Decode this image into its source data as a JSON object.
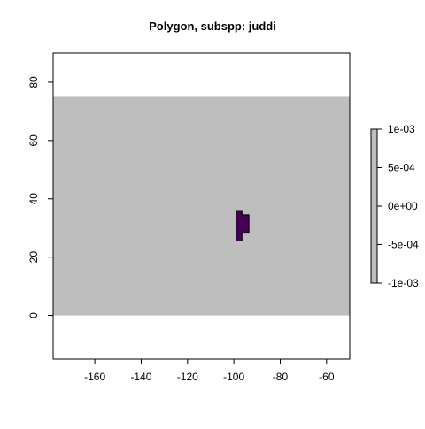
{
  "chart_data": {
    "type": "heatmap",
    "title": "Polygon, subspp: juddi",
    "xlim": [
      -178,
      -50
    ],
    "ylim": [
      -15,
      90
    ],
    "x_ticks": [
      -160,
      -140,
      -120,
      -100,
      -80,
      -60
    ],
    "y_ticks": [
      0,
      20,
      40,
      60,
      80
    ],
    "background_extent": {
      "x": [
        -178,
        -50
      ],
      "y": [
        0,
        75
      ]
    },
    "background_color": "#bebebe",
    "polygon": {
      "color": "#440154",
      "vertices": [
        [
          -99,
          25.5
        ],
        [
          -96.5,
          25.5
        ],
        [
          -96.5,
          28.5
        ],
        [
          -93.5,
          28.5
        ],
        [
          -93.5,
          34.5
        ],
        [
          -96.5,
          34.5
        ],
        [
          -96.5,
          36
        ],
        [
          -99,
          36
        ]
      ]
    },
    "legend": {
      "labels": [
        "1e-03",
        "5e-04",
        "0e+00",
        "-5e-04",
        "-1e-03"
      ],
      "values": [
        0.001,
        0.0005,
        0,
        -0.0005,
        -0.001
      ],
      "fill_color": "#bebebe"
    }
  }
}
